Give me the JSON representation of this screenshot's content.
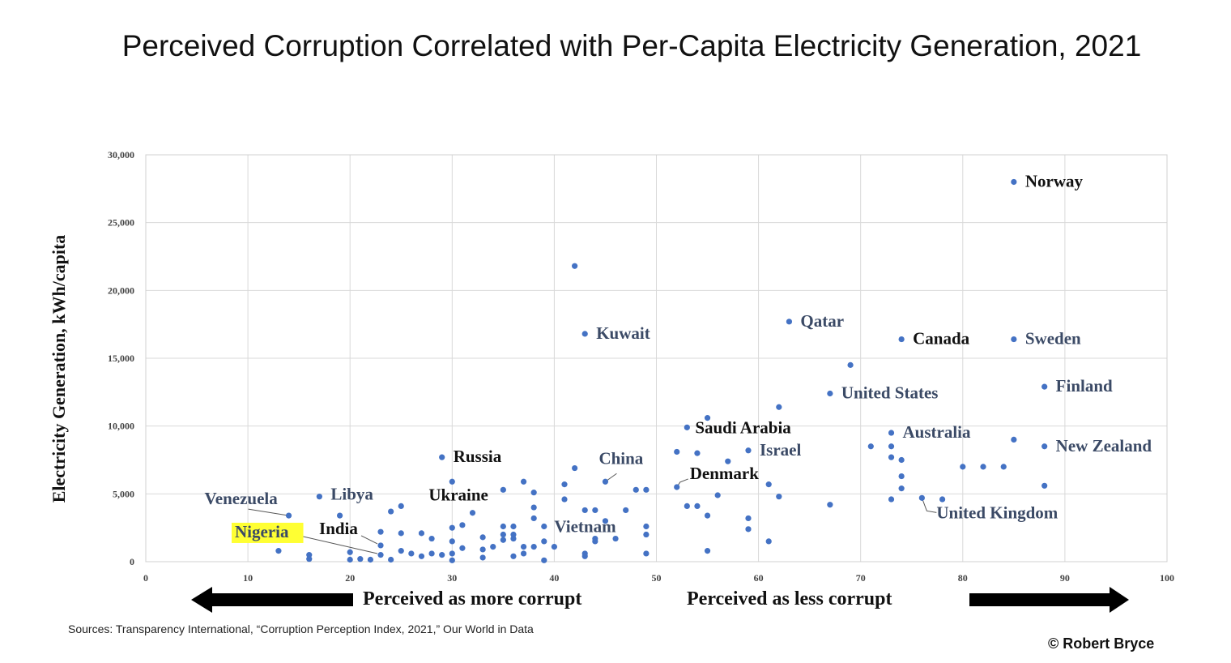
{
  "title": "Perceived Corruption Correlated with Per-Capita Electricity Generation, 2021",
  "source": "Sources: Transparency International, “Corruption Perception Index, 2021,” Our World in Data",
  "copyright": "© Robert Bryce",
  "arrows": {
    "left_label": "Perceived as more corrupt",
    "right_label": "Perceived as less corrupt"
  },
  "chart_data": {
    "type": "scatter",
    "title": "Perceived Corruption Correlated with Per-Capita Electricity Generation, 2021",
    "xlabel": "",
    "ylabel": "Electricity Generation, kWh/capita",
    "xlim": [
      0,
      100
    ],
    "ylim": [
      0,
      30000
    ],
    "xticks": [
      "0",
      "10",
      "20",
      "30",
      "40",
      "50",
      "60",
      "70",
      "80",
      "90",
      "100"
    ],
    "yticks": [
      "0",
      "5,000",
      "10,000",
      "15,000",
      "20,000",
      "25,000",
      "30,000"
    ],
    "grid": true,
    "marker_color": "#4472C4",
    "highlight_color": "#FFFF33",
    "points": [
      {
        "x": 85,
        "y": 28000
      },
      {
        "x": 42,
        "y": 21800
      },
      {
        "x": 43,
        "y": 16800
      },
      {
        "x": 63,
        "y": 17700
      },
      {
        "x": 74,
        "y": 16400
      },
      {
        "x": 85,
        "y": 16400
      },
      {
        "x": 69,
        "y": 14500
      },
      {
        "x": 67,
        "y": 12400
      },
      {
        "x": 88,
        "y": 12900
      },
      {
        "x": 62,
        "y": 11400
      },
      {
        "x": 55,
        "y": 10600
      },
      {
        "x": 53,
        "y": 9900
      },
      {
        "x": 73,
        "y": 9500
      },
      {
        "x": 85,
        "y": 9000
      },
      {
        "x": 71,
        "y": 8500
      },
      {
        "x": 73,
        "y": 8500
      },
      {
        "x": 88,
        "y": 8500
      },
      {
        "x": 52,
        "y": 8100
      },
      {
        "x": 54,
        "y": 8000
      },
      {
        "x": 59,
        "y": 8200
      },
      {
        "x": 73,
        "y": 7700
      },
      {
        "x": 74,
        "y": 7500
      },
      {
        "x": 29,
        "y": 7700
      },
      {
        "x": 57,
        "y": 7400
      },
      {
        "x": 80,
        "y": 7000
      },
      {
        "x": 82,
        "y": 7000
      },
      {
        "x": 84,
        "y": 7000
      },
      {
        "x": 42,
        "y": 6900
      },
      {
        "x": 74,
        "y": 6300
      },
      {
        "x": 45,
        "y": 5900
      },
      {
        "x": 37,
        "y": 5900
      },
      {
        "x": 30,
        "y": 5900
      },
      {
        "x": 41,
        "y": 5700
      },
      {
        "x": 52,
        "y": 5500
      },
      {
        "x": 61,
        "y": 5700
      },
      {
        "x": 88,
        "y": 5600
      },
      {
        "x": 74,
        "y": 5400
      },
      {
        "x": 35,
        "y": 5300
      },
      {
        "x": 48,
        "y": 5300
      },
      {
        "x": 49,
        "y": 5300
      },
      {
        "x": 38,
        "y": 5100
      },
      {
        "x": 56,
        "y": 4900
      },
      {
        "x": 62,
        "y": 4800
      },
      {
        "x": 17,
        "y": 4800
      },
      {
        "x": 41,
        "y": 4600
      },
      {
        "x": 76,
        "y": 4700
      },
      {
        "x": 73,
        "y": 4600
      },
      {
        "x": 78,
        "y": 4600
      },
      {
        "x": 67,
        "y": 4200
      },
      {
        "x": 53,
        "y": 4100
      },
      {
        "x": 54,
        "y": 4100
      },
      {
        "x": 25,
        "y": 4100
      },
      {
        "x": 38,
        "y": 4000
      },
      {
        "x": 24,
        "y": 3700
      },
      {
        "x": 43,
        "y": 3800
      },
      {
        "x": 44,
        "y": 3800
      },
      {
        "x": 47,
        "y": 3800
      },
      {
        "x": 32,
        "y": 3600
      },
      {
        "x": 14,
        "y": 3400
      },
      {
        "x": 19,
        "y": 3400
      },
      {
        "x": 55,
        "y": 3400
      },
      {
        "x": 38,
        "y": 3200
      },
      {
        "x": 59,
        "y": 3200
      },
      {
        "x": 45,
        "y": 3000
      },
      {
        "x": 31,
        "y": 2700
      },
      {
        "x": 35,
        "y": 2600
      },
      {
        "x": 36,
        "y": 2600
      },
      {
        "x": 39,
        "y": 2600
      },
      {
        "x": 49,
        "y": 2600
      },
      {
        "x": 30,
        "y": 2500
      },
      {
        "x": 59,
        "y": 2400
      },
      {
        "x": 23,
        "y": 2200
      },
      {
        "x": 25,
        "y": 2100
      },
      {
        "x": 27,
        "y": 2100
      },
      {
        "x": 35,
        "y": 2000
      },
      {
        "x": 36,
        "y": 2000
      },
      {
        "x": 49,
        "y": 2000
      },
      {
        "x": 33,
        "y": 1800
      },
      {
        "x": 28,
        "y": 1700
      },
      {
        "x": 36,
        "y": 1700
      },
      {
        "x": 44,
        "y": 1700
      },
      {
        "x": 46,
        "y": 1700
      },
      {
        "x": 35,
        "y": 1600
      },
      {
        "x": 30,
        "y": 1500
      },
      {
        "x": 39,
        "y": 1500
      },
      {
        "x": 44,
        "y": 1500
      },
      {
        "x": 61,
        "y": 1500
      },
      {
        "x": 23,
        "y": 1200
      },
      {
        "x": 34,
        "y": 1100
      },
      {
        "x": 37,
        "y": 1100
      },
      {
        "x": 38,
        "y": 1100
      },
      {
        "x": 40,
        "y": 1100
      },
      {
        "x": 31,
        "y": 1000
      },
      {
        "x": 33,
        "y": 900
      },
      {
        "x": 13,
        "y": 800
      },
      {
        "x": 55,
        "y": 800
      },
      {
        "x": 25,
        "y": 800
      },
      {
        "x": 20,
        "y": 700
      },
      {
        "x": 26,
        "y": 600
      },
      {
        "x": 28,
        "y": 600
      },
      {
        "x": 30,
        "y": 600
      },
      {
        "x": 37,
        "y": 600
      },
      {
        "x": 43,
        "y": 600
      },
      {
        "x": 49,
        "y": 600
      },
      {
        "x": 16,
        "y": 500
      },
      {
        "x": 23,
        "y": 500
      },
      {
        "x": 29,
        "y": 500
      },
      {
        "x": 27,
        "y": 400
      },
      {
        "x": 36,
        "y": 400
      },
      {
        "x": 43,
        "y": 400
      },
      {
        "x": 33,
        "y": 300
      },
      {
        "x": 16,
        "y": 200
      },
      {
        "x": 21,
        "y": 200
      },
      {
        "x": 20,
        "y": 150
      },
      {
        "x": 22,
        "y": 150
      },
      {
        "x": 24,
        "y": 150
      },
      {
        "x": 30,
        "y": 100
      },
      {
        "x": 39,
        "y": 100
      }
    ],
    "annotations": [
      {
        "text": "Norway",
        "x": 85,
        "y": 28000,
        "bold": true,
        "leader": false
      },
      {
        "text": "Kuwait",
        "x": 43,
        "y": 16800,
        "bold": true,
        "leader": false
      },
      {
        "text": "Qatar",
        "x": 63,
        "y": 17700,
        "bold": true,
        "leader": false
      },
      {
        "text": "Canada",
        "x": 74,
        "y": 16400,
        "bold": true,
        "leader": false
      },
      {
        "text": "Sweden",
        "x": 85,
        "y": 16400,
        "bold": true,
        "leader": false
      },
      {
        "text": "United States",
        "x": 67,
        "y": 12400,
        "bold": true,
        "leader": false
      },
      {
        "text": "Finland",
        "x": 88,
        "y": 12900,
        "bold": true,
        "leader": false
      },
      {
        "text": "Saudi Arabia",
        "x": 53,
        "y": 9900,
        "bold": true,
        "leader": false
      },
      {
        "text": "Australia",
        "x": 73,
        "y": 9500,
        "bold": true,
        "leader": false
      },
      {
        "text": "Israel",
        "x": 59,
        "y": 8200,
        "bold": true,
        "leader": false
      },
      {
        "text": "New Zealand",
        "x": 88,
        "y": 8500,
        "bold": true,
        "leader": false
      },
      {
        "text": "Russia",
        "x": 29,
        "y": 7700,
        "bold": true,
        "leader": false
      },
      {
        "text": "China",
        "x": 45,
        "y": 5900,
        "bold": true,
        "leader": true
      },
      {
        "text": "Denmark",
        "x": 52,
        "y": 5500,
        "bold": true,
        "leader": true
      },
      {
        "text": "Ukraine",
        "x": 35,
        "y": 5300,
        "bold": true,
        "leader": false
      },
      {
        "text": "Libya",
        "x": 17,
        "y": 4800,
        "bold": true,
        "leader": false
      },
      {
        "text": "Venezuela",
        "x": 14,
        "y": 3400,
        "bold": true,
        "leader": true
      },
      {
        "text": "United Kingdom",
        "x": 76,
        "y": 4700,
        "bold": true,
        "leader": true
      },
      {
        "text": "Vietnam",
        "x": 40,
        "y": 2600,
        "bold": true,
        "leader": false
      },
      {
        "text": "India",
        "x": 23,
        "y": 1200,
        "bold": true,
        "leader": true
      },
      {
        "text": "Nigeria",
        "x": 23,
        "y": 600,
        "bold": true,
        "leader": true,
        "highlight": true
      }
    ]
  }
}
